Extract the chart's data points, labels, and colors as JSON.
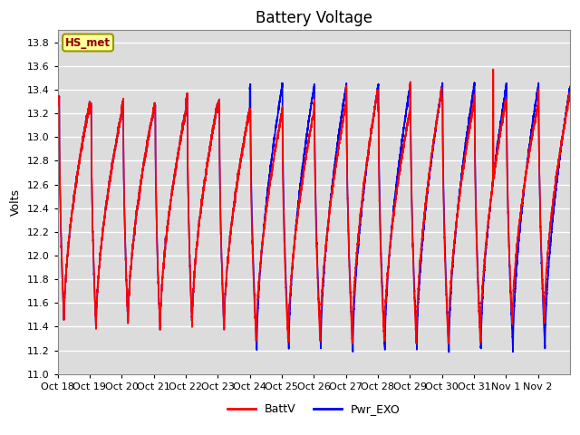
{
  "title": "Battery Voltage",
  "ylabel": "Volts",
  "xlabel": "",
  "ylim": [
    11.0,
    13.9
  ],
  "yticks": [
    11.0,
    11.2,
    11.4,
    11.6,
    11.8,
    12.0,
    12.2,
    12.4,
    12.6,
    12.8,
    13.0,
    13.2,
    13.4,
    13.6,
    13.8
  ],
  "xtick_labels": [
    "Oct 18",
    "Oct 19",
    "Oct 20",
    "Oct 21",
    "Oct 22",
    "Oct 23",
    "Oct 24",
    "Oct 25",
    "Oct 26",
    "Oct 27",
    "Oct 28",
    "Oct 29",
    "Oct 30",
    "Oct 31",
    "Nov 1",
    "Nov 2"
  ],
  "line1_color": "red",
  "line2_color": "blue",
  "line1_label": "BattV",
  "line2_label": "Pwr_EXO",
  "annotation_text": "HS_met",
  "annotation_color": "#8B0000",
  "annotation_bg": "#FFFF99",
  "plot_bg_color": "#DCDCDC",
  "title_fontsize": 12,
  "axis_fontsize": 9,
  "tick_fontsize": 8,
  "linewidth": 1.2,
  "grid_color": "white",
  "grid_linewidth": 1.0,
  "days": 16,
  "pts_per_day": 500
}
